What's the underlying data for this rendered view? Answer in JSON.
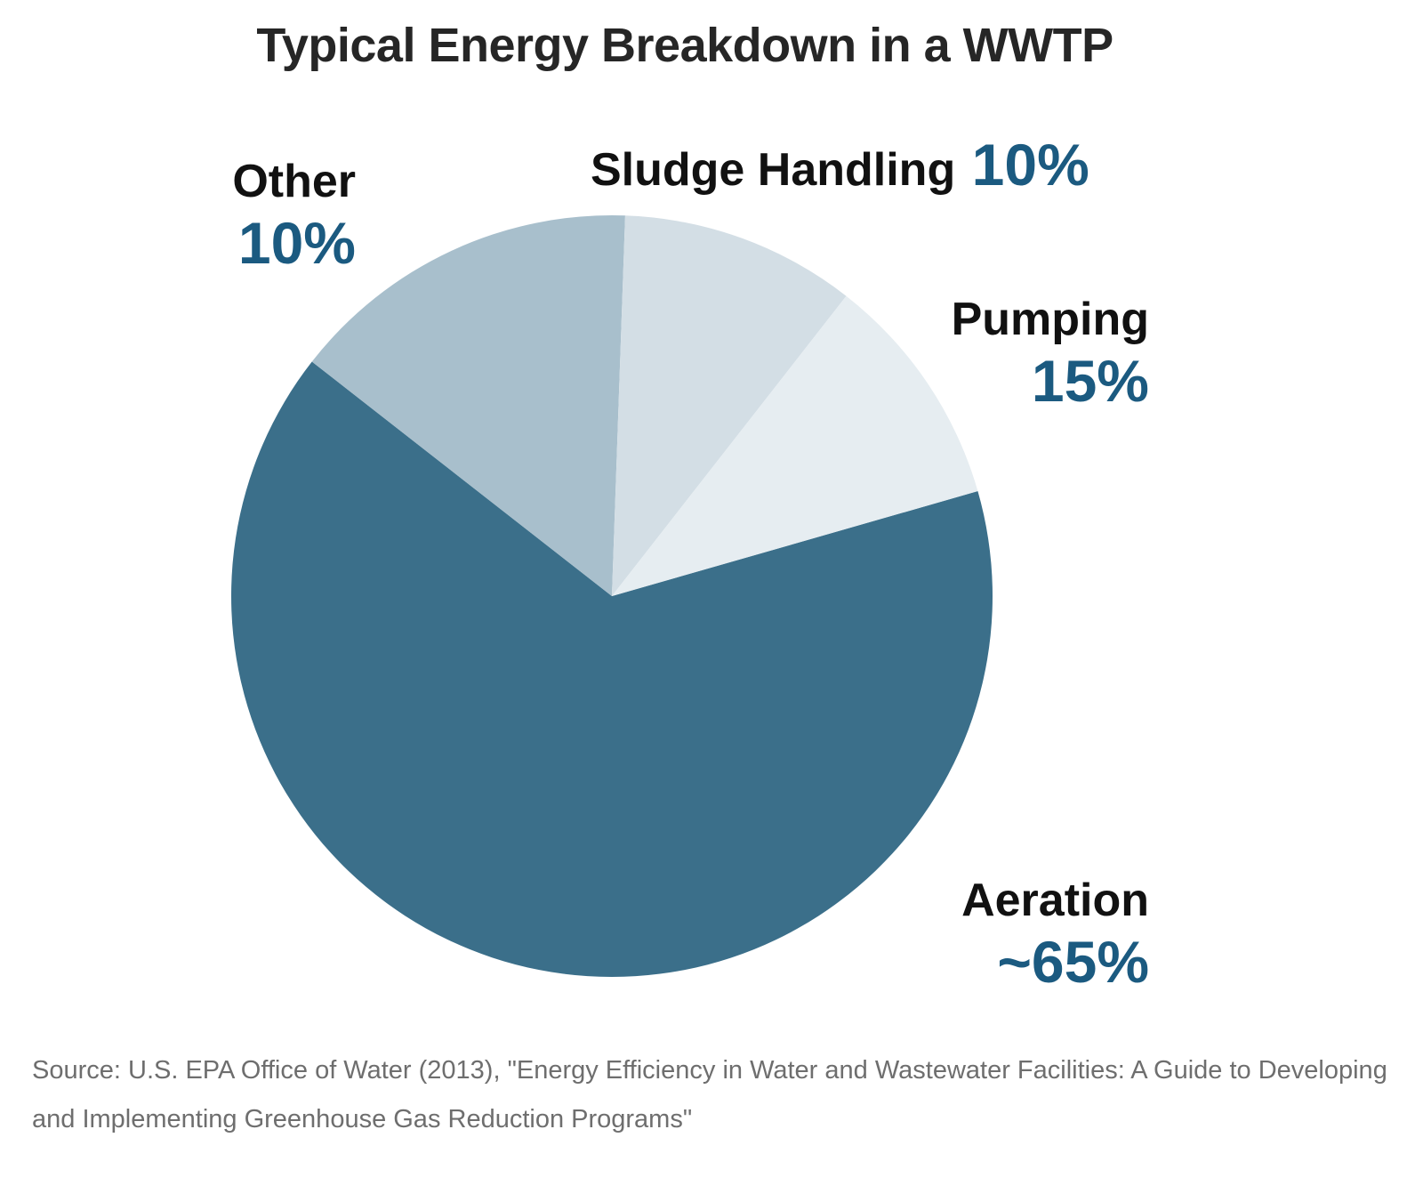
{
  "chart_data": {
    "type": "pie",
    "title": "Typical Energy Breakdown in a WWTP",
    "slices": [
      {
        "name": "Aeration",
        "label": "~65%",
        "value": 65,
        "color": "#3b6f8a"
      },
      {
        "name": "Pumping",
        "label": "15%",
        "value": 15,
        "color": "#a8bfcc"
      },
      {
        "name": "Sludge Handling",
        "label": "10%",
        "value": 10,
        "color": "#d3dee5"
      },
      {
        "name": "Other",
        "label": "10%",
        "value": 10,
        "color": "#e6edf1"
      }
    ],
    "source": "Source: U.S. EPA Office of Water (2013), \"Energy Efficiency in Water and Wastewater Facilities: A Guide to Developing and Implementing Greenhouse Gas Reduction Programs\""
  },
  "colors": {
    "label_text": "#111111",
    "percent_text": "#1b5a80",
    "source_text": "#6e6e6e",
    "title_text": "#262626"
  }
}
